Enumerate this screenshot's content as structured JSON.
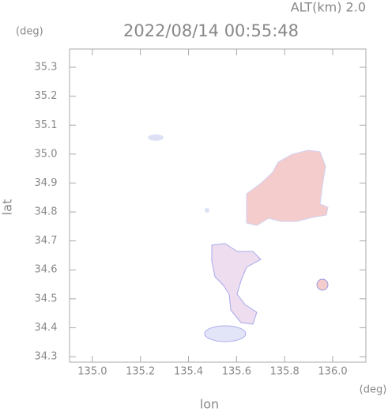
{
  "chart_data": {
    "type": "map",
    "title": "2022/08/14 00:55:48",
    "subtitle": "ALT(km) 2.0",
    "y_unit": "(deg)",
    "x_unit": "(deg)",
    "xlabel": "lon",
    "ylabel": "lat",
    "xlim": [
      134.905,
      136.138
    ],
    "ylim": [
      34.281,
      35.363
    ],
    "xticks": [
      {
        "value": 135.0,
        "label": "135.0"
      },
      135.2,
      135.4,
      135.6,
      135.8,
      {
        "value": 136.0,
        "label": "136.0"
      }
    ],
    "yticks": [
      34.3,
      34.4,
      34.5,
      34.6,
      34.7,
      34.8,
      34.9,
      {
        "value": 35.0,
        "label": "35.0"
      },
      35.1,
      35.2,
      35.3
    ]
  }
}
